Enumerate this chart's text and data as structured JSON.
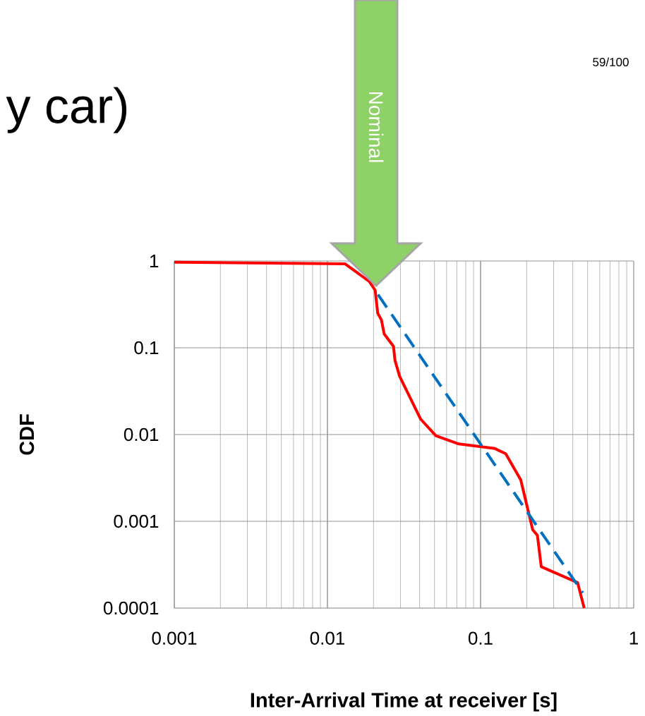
{
  "chart_data": {
    "type": "line",
    "title": "y car)",
    "xlabel": "Inter-Arrival Time at receiver [s]",
    "ylabel": "CDF",
    "log": "xy",
    "grid": true,
    "xlim": [
      0.001,
      1
    ],
    "ylim": [
      0.0001,
      1
    ],
    "xticks": [
      0.001,
      0.01,
      0.1,
      1
    ],
    "yticks": [
      0.0001,
      0.001,
      0.01,
      0.1,
      1
    ],
    "annotations": [
      "Nominal",
      "59/100"
    ],
    "series": [
      {
        "color": "#ff0000",
        "line_style": "solid",
        "x": [
          0.001,
          0.013,
          0.0188,
          0.0205,
          0.0213,
          0.0225,
          0.0235,
          0.027,
          0.0276,
          0.0296,
          0.0406,
          0.051,
          0.072,
          0.124,
          0.146,
          0.183,
          0.205,
          0.219,
          0.235,
          0.249,
          0.43,
          0.475
        ],
        "values": [
          0.97,
          0.93,
          0.58,
          0.46,
          0.25,
          0.21,
          0.144,
          0.104,
          0.072,
          0.047,
          0.0151,
          0.0097,
          0.0078,
          0.0069,
          0.006,
          0.003,
          0.0013,
          0.0008,
          0.00069,
          0.0003,
          0.000197,
          0.0001
        ]
      },
      {
        "color": "#0070c0",
        "line_style": "dashed",
        "x": [
          0.0214,
          0.465
        ],
        "values": [
          0.41,
          0.00015
        ]
      }
    ]
  }
}
